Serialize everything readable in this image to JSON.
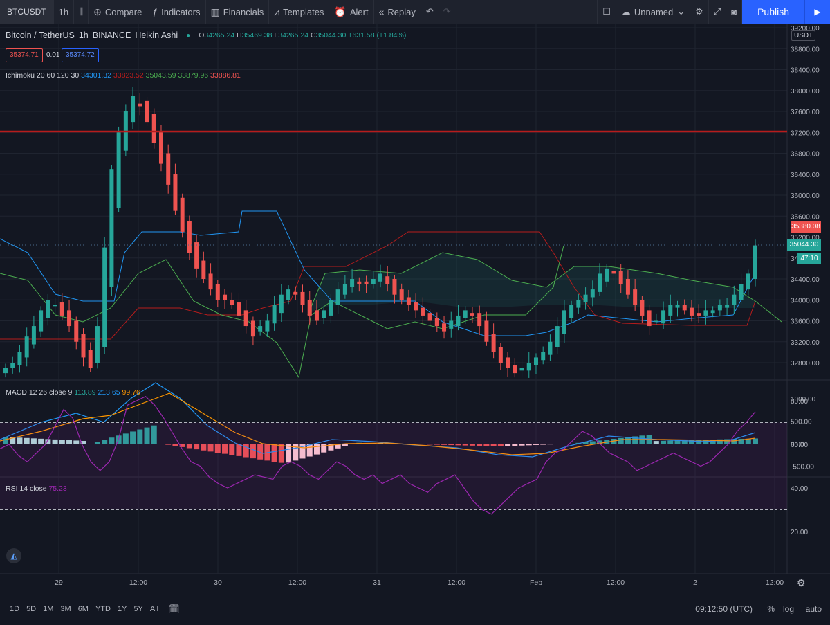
{
  "toolbar": {
    "symbol": "BTCUSDT",
    "interval": "1h",
    "compare": "Compare",
    "indicators": "Indicators",
    "financials": "Financials",
    "templates": "Templates",
    "alert": "Alert",
    "replay": "Replay",
    "layout_name": "Unnamed",
    "publish": "Publish"
  },
  "legend": {
    "pair": "Bitcoin / TetherUS",
    "interval": "1h",
    "exchange": "BINANCE",
    "chart_type": "Heikin Ashi",
    "o_label": "O",
    "o": "34265.24",
    "h_label": "H",
    "h": "35469.38",
    "l_label": "L",
    "l": "34265.24",
    "c_label": "C",
    "c": "35044.30",
    "change": "+631.58 (+1.84%)",
    "sell_price": "35374.71",
    "spread": "0.01",
    "buy_price": "35374.72"
  },
  "ichimoku": {
    "label": "Ichimoku 20 60 120 30",
    "v1": "34301.32",
    "v2": "33823.52",
    "v3": "35043.59",
    "v4": "33879.96",
    "v5": "33886.81"
  },
  "macd": {
    "label": "MACD 12 26 close 9",
    "hist": "113.89",
    "macd": "213.65",
    "signal": "99.76"
  },
  "rsi": {
    "label": "RSI 14 close",
    "value": "75.23"
  },
  "price_axis": {
    "currency": "USDT",
    "ticks": [
      "39200.00",
      "38800.00",
      "38400.00",
      "38000.00",
      "37600.00",
      "37200.00",
      "36800.00",
      "36400.00",
      "36000.00",
      "35600.00",
      "35200.00",
      "34800.00",
      "34400.00",
      "34000.00",
      "33600.00",
      "33200.00",
      "32800.00"
    ],
    "tag_high": "35380.08",
    "tag_close": "35044.30",
    "tag_countdown": "47:10"
  },
  "macd_axis": {
    "ticks": [
      "1000.00",
      "500.00",
      "0.00",
      "-500.00"
    ]
  },
  "rsi_axis": {
    "ticks": [
      "80.00",
      "60.00",
      "40.00",
      "20.00"
    ]
  },
  "time_axis": {
    "ticks": [
      "29",
      "12:00",
      "30",
      "12:00",
      "31",
      "12:00",
      "Feb",
      "12:00",
      "2",
      "12:00"
    ]
  },
  "bottom": {
    "ranges": [
      "1D",
      "5D",
      "1M",
      "3M",
      "6M",
      "YTD",
      "1Y",
      "5Y",
      "All"
    ],
    "clock": "09:12:50 (UTC)",
    "percent": "%",
    "log": "log",
    "auto": "auto"
  },
  "colors": {
    "up": "#26a69a",
    "down": "#ef5350",
    "hline": "#b71c1c",
    "tenkan": "#2196f3",
    "kijun": "#b71c1c",
    "span_a": "#4caf50",
    "rsi": "#9c27b0"
  }
}
